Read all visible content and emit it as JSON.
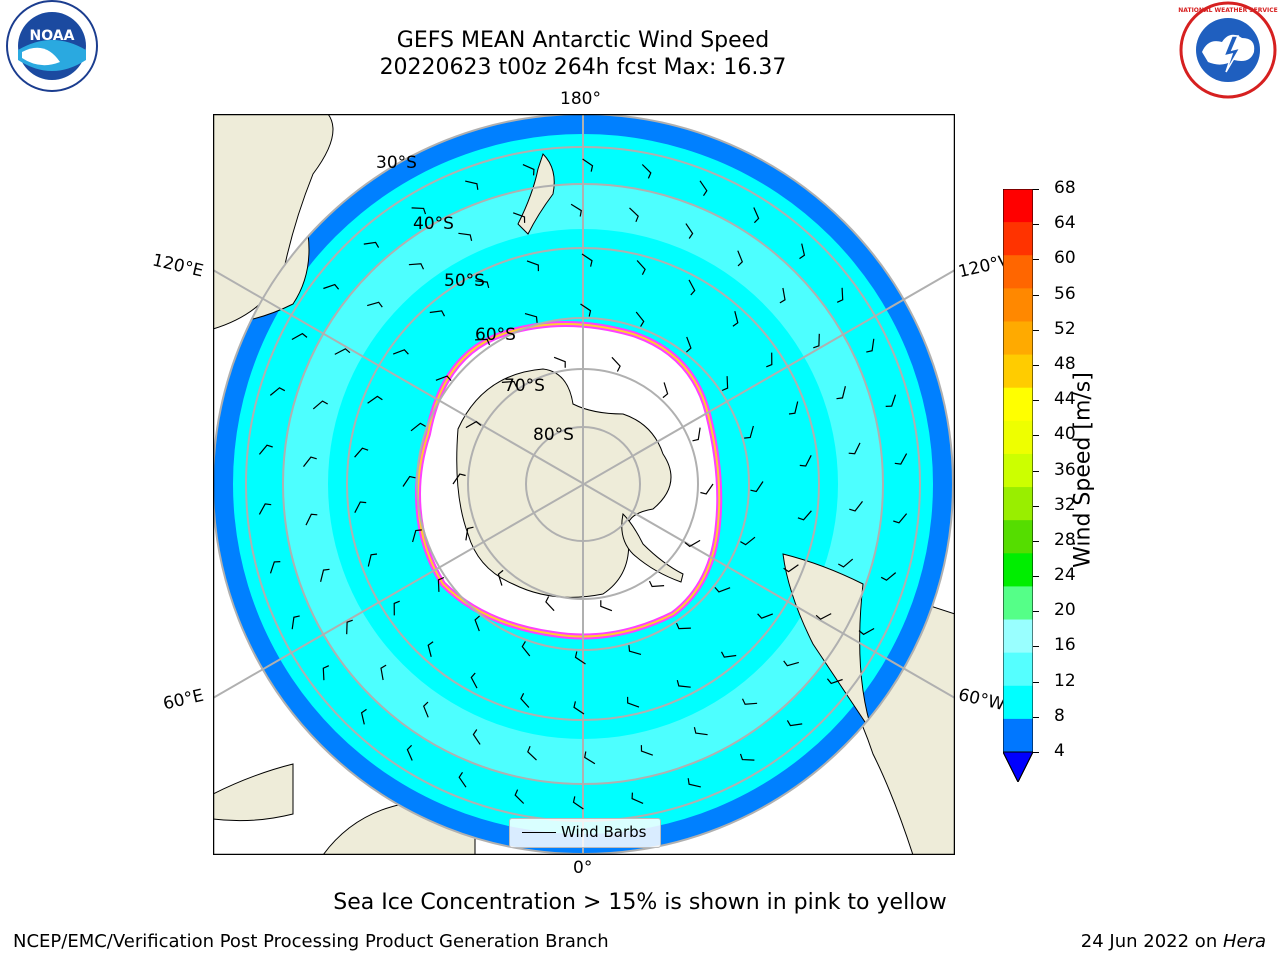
{
  "title": {
    "line1": "GEFS MEAN Antarctic Wind Speed",
    "line2": "20220623 t00z 264h fcst   Max: 16.37"
  },
  "logos": {
    "left": {
      "icon": "noaa-logo",
      "text": "NOAA"
    },
    "right": {
      "icon": "national-weather-service-logo",
      "text": "NATIONAL WEATHER SERVICE"
    }
  },
  "map": {
    "projection": "south-polar-stereographic",
    "longitude_labels": {
      "top": "180°",
      "upper_left": "120°E",
      "upper_right": "120°W",
      "lower_left": "60°E",
      "lower_right": "60°W",
      "bottom": "0°"
    },
    "latitude_labels": [
      "30°S",
      "40°S",
      "50°S",
      "60°S",
      "70°S",
      "80°S"
    ],
    "legend_label": "Wind Barbs",
    "colors": {
      "land": "#eeecd9",
      "ocean_4_8": "#0080ff",
      "ocean_8_12": "#00ffff",
      "ocean_12_16": "#4dffff",
      "sea_ice_edge_pink": "#ff40ff",
      "sea_ice_edge_yellow": "#ffcc33",
      "grid": "#b0b0b0"
    }
  },
  "colorbar": {
    "label": "Wind Speed [m/s]",
    "ticks": [
      "68",
      "64",
      "60",
      "56",
      "52",
      "48",
      "44",
      "40",
      "36",
      "32",
      "28",
      "24",
      "20",
      "16",
      "12",
      "8",
      "4"
    ],
    "colors": [
      "#ff0000",
      "#ff3300",
      "#ff6600",
      "#ff8800",
      "#ffaa00",
      "#ffcc00",
      "#ffff00",
      "#eeff00",
      "#ccff00",
      "#99ee00",
      "#55dd00",
      "#00ee00",
      "#55ff88",
      "#99ffff",
      "#55ffff",
      "#00ffff",
      "#0077ff",
      "#0000ff"
    ]
  },
  "caption": "Sea Ice Concentration > 15% is shown in pink to yellow",
  "footer": {
    "left": "NCEP/EMC/Verification Post Processing Product Generation Branch",
    "date": "24 Jun 2022 on ",
    "machine": "Hera"
  }
}
